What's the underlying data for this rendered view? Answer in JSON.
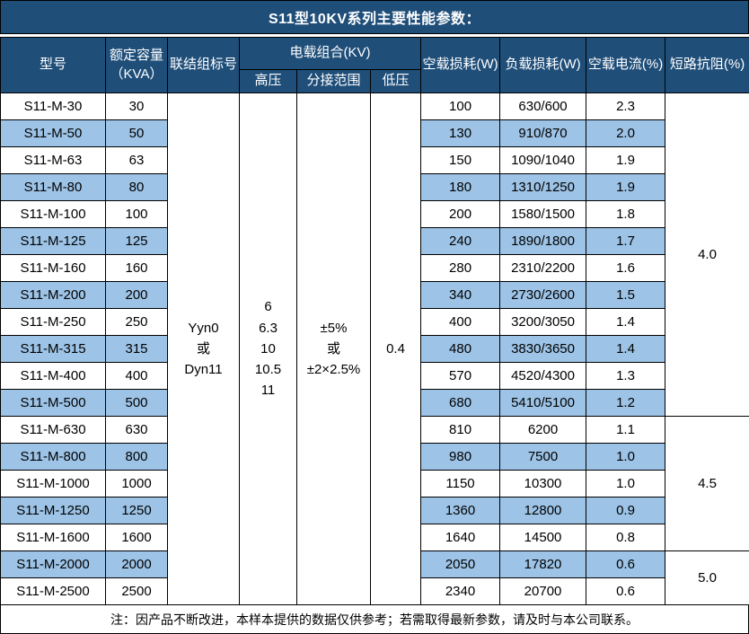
{
  "title": "S11型10KV系列主要性能参数：",
  "columns": {
    "model": "型号",
    "capacity": "额定容量\n（KVA）",
    "vector_group": "联结组标号",
    "voltage_combo": "电载组合(KV)",
    "hv": "高压",
    "tap_range": "分接范围",
    "lv": "低压",
    "no_load_loss": "空载损耗(W)",
    "load_loss": "负载损耗(W)",
    "no_load_current": "空载电流(%)",
    "impedance": "短路抗阻(%)"
  },
  "merged_cells": {
    "vector_group": "Yyn0\n或\nDyn11",
    "hv": "6\n6.3\n10\n10.5\n11",
    "tap_range": "±5%\n或\n±2×2.5%",
    "lv": "0.4"
  },
  "impedance_groups": [
    {
      "value": "4.0",
      "rowspan": 12
    },
    {
      "value": "4.5",
      "rowspan": 5
    },
    {
      "value": "5.0",
      "rowspan": 2
    }
  ],
  "rows": [
    {
      "model": "S11-M-30",
      "capacity": "30",
      "no_load_loss": "100",
      "load_loss": "630/600",
      "no_load_current": "2.3"
    },
    {
      "model": "S11-M-50",
      "capacity": "50",
      "no_load_loss": "130",
      "load_loss": "910/870",
      "no_load_current": "2.0"
    },
    {
      "model": "S11-M-63",
      "capacity": "63",
      "no_load_loss": "150",
      "load_loss": "1090/1040",
      "no_load_current": "1.9"
    },
    {
      "model": "S11-M-80",
      "capacity": "80",
      "no_load_loss": "180",
      "load_loss": "1310/1250",
      "no_load_current": "1.9"
    },
    {
      "model": "S11-M-100",
      "capacity": "100",
      "no_load_loss": "200",
      "load_loss": "1580/1500",
      "no_load_current": "1.8"
    },
    {
      "model": "S11-M-125",
      "capacity": "125",
      "no_load_loss": "240",
      "load_loss": "1890/1800",
      "no_load_current": "1.7"
    },
    {
      "model": "S11-M-160",
      "capacity": "160",
      "no_load_loss": "280",
      "load_loss": "2310/2200",
      "no_load_current": "1.6"
    },
    {
      "model": "S11-M-200",
      "capacity": "200",
      "no_load_loss": "340",
      "load_loss": "2730/2600",
      "no_load_current": "1.5"
    },
    {
      "model": "S11-M-250",
      "capacity": "250",
      "no_load_loss": "400",
      "load_loss": "3200/3050",
      "no_load_current": "1.4"
    },
    {
      "model": "S11-M-315",
      "capacity": "315",
      "no_load_loss": "480",
      "load_loss": "3830/3650",
      "no_load_current": "1.4"
    },
    {
      "model": "S11-M-400",
      "capacity": "400",
      "no_load_loss": "570",
      "load_loss": "4520/4300",
      "no_load_current": "1.3"
    },
    {
      "model": "S11-M-500",
      "capacity": "500",
      "no_load_loss": "680",
      "load_loss": "5410/5100",
      "no_load_current": "1.2"
    },
    {
      "model": "S11-M-630",
      "capacity": "630",
      "no_load_loss": "810",
      "load_loss": "6200",
      "no_load_current": "1.1"
    },
    {
      "model": "S11-M-800",
      "capacity": "800",
      "no_load_loss": "980",
      "load_loss": "7500",
      "no_load_current": "1.0"
    },
    {
      "model": "S11-M-1000",
      "capacity": "1000",
      "no_load_loss": "1150",
      "load_loss": "10300",
      "no_load_current": "1.0"
    },
    {
      "model": "S11-M-1250",
      "capacity": "1250",
      "no_load_loss": "1360",
      "load_loss": "12800",
      "no_load_current": "0.9"
    },
    {
      "model": "S11-M-1600",
      "capacity": "1600",
      "no_load_loss": "1640",
      "load_loss": "14500",
      "no_load_current": "0.8"
    },
    {
      "model": "S11-M-2000",
      "capacity": "2000",
      "no_load_loss": "2050",
      "load_loss": "17820",
      "no_load_current": "0.6"
    },
    {
      "model": "S11-M-2500",
      "capacity": "2500",
      "no_load_loss": "2340",
      "load_loss": "20700",
      "no_load_current": "0.6"
    }
  ],
  "footer_note": "注：因产品不断改进，本样本提供的数据仅供参考；若需取得最新参数，请及时与本公司联系。",
  "colors": {
    "header_bg": "#1F4E79",
    "stripe_bg": "#9DC3E6",
    "row_bg": "#FFFFFF",
    "border": "#000000",
    "header_text": "#FFFFFF",
    "body_text": "#000000"
  }
}
